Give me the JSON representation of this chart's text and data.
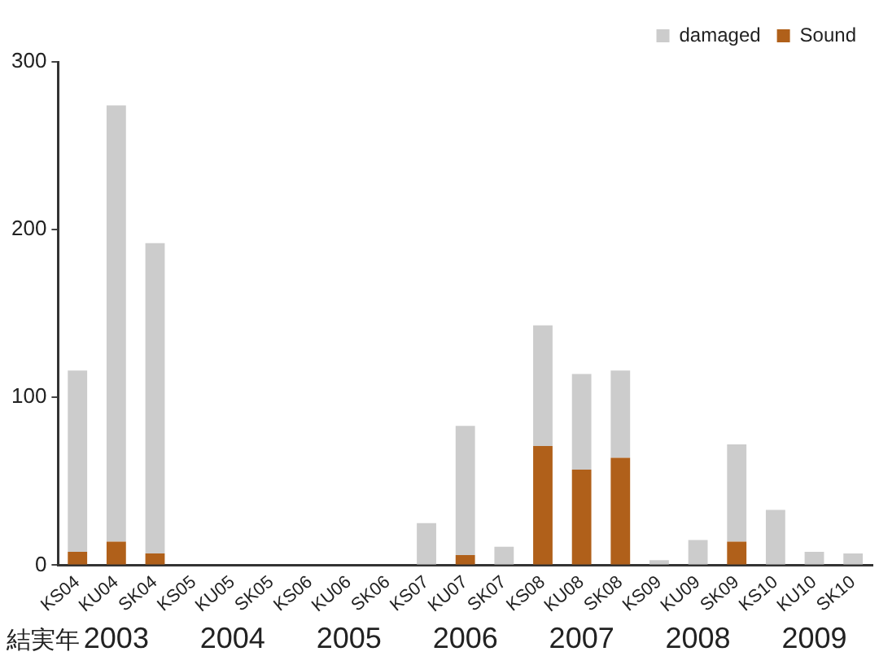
{
  "chart_data": {
    "type": "bar",
    "stacked": true,
    "categories": [
      "KS04",
      "KU04",
      "SK04",
      "KS05",
      "KU05",
      "SK05",
      "KS06",
      "KU06",
      "SK06",
      "KS07",
      "KU07",
      "SK07",
      "KS08",
      "KU08",
      "SK08",
      "KS09",
      "KU09",
      "SK09",
      "KS10",
      "KU10",
      "SK10"
    ],
    "series": [
      {
        "name": "Sound",
        "color": "#b0601a",
        "values": [
          8,
          14,
          7,
          0,
          0,
          0,
          0,
          0,
          0,
          0,
          6,
          0,
          71,
          57,
          64,
          0,
          0,
          14,
          0,
          0,
          0
        ]
      },
      {
        "name": "damaged",
        "color": "#cccccc",
        "values": [
          108,
          260,
          185,
          0,
          0,
          0,
          0,
          0,
          0,
          25,
          77,
          11,
          72,
          57,
          52,
          3,
          15,
          58,
          33,
          8,
          7
        ]
      }
    ],
    "ylim": [
      0,
      300
    ],
    "yticks": [
      0,
      100,
      200,
      300
    ],
    "grid": false,
    "legend": "top right",
    "annotations": [
      "結実年",
      "2003",
      "2004",
      "2005",
      "2006",
      "2007",
      "2008",
      "2009"
    ]
  }
}
